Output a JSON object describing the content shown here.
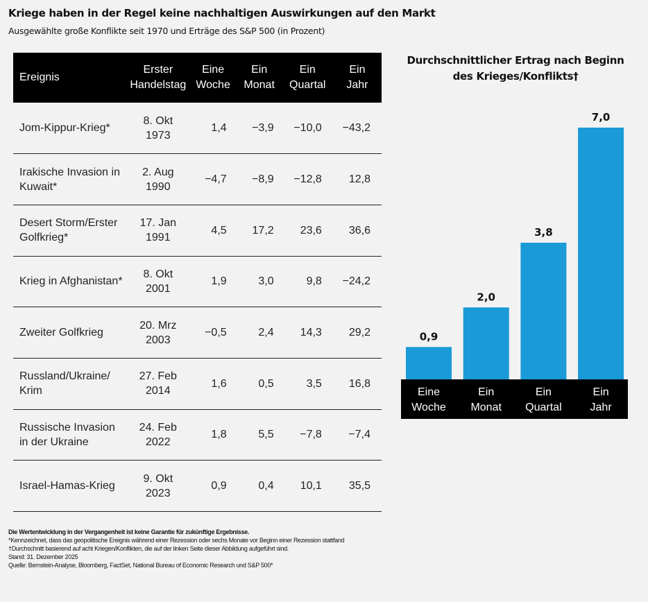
{
  "title": "Kriege haben in der Regel keine nachhaltigen Auswirkungen auf den Markt",
  "subtitle": "Ausgewählte große Konflikte seit 1970 und Erträge des S&P 500 (in Prozent)",
  "table": {
    "headers": [
      [
        "Ereignis"
      ],
      [
        "Erster",
        "Handelstag"
      ],
      [
        "Eine",
        "Woche"
      ],
      [
        "Ein",
        "Monat"
      ],
      [
        "Ein",
        "Quartal"
      ],
      [
        "Ein",
        "Jahr"
      ]
    ],
    "rows": [
      {
        "event": [
          "Jom-Kippur-Krieg*"
        ],
        "date": [
          "8. Okt",
          "1973"
        ],
        "week": "1,4",
        "month": "−3,9",
        "quarter": "−10,0",
        "year": "−43,2"
      },
      {
        "event": [
          "Irakische Invasion in",
          "Kuwait*"
        ],
        "date": [
          "2. Aug",
          "1990"
        ],
        "week": "−4,7",
        "month": "−8,9",
        "quarter": "−12,8",
        "year": "12,8"
      },
      {
        "event": [
          "Desert Storm/Erster",
          "Golfkrieg*"
        ],
        "date": [
          "17. Jan",
          "1991"
        ],
        "week": "4,5",
        "month": "17,2",
        "quarter": "23,6",
        "year": "36,6"
      },
      {
        "event": [
          "Krieg in Afghanistan*"
        ],
        "date": [
          "8. Okt",
          "2001"
        ],
        "week": "1,9",
        "month": "3,0",
        "quarter": "9,8",
        "year": "−24,2"
      },
      {
        "event": [
          "Zweiter Golfkrieg"
        ],
        "date": [
          "20. Mrz",
          "2003"
        ],
        "week": "−0,5",
        "month": "2,4",
        "quarter": "14,3",
        "year": "29,2"
      },
      {
        "event": [
          "Russland/Ukraine/",
          "Krim"
        ],
        "date": [
          "27. Feb",
          "2014"
        ],
        "week": "1,6",
        "month": "0,5",
        "quarter": "3,5",
        "year": "16,8"
      },
      {
        "event": [
          "Russische Invasion",
          "in der Ukraine"
        ],
        "date": [
          "24. Feb",
          "2022"
        ],
        "week": "1,8",
        "month": "5,5",
        "quarter": "−7,8",
        "year": "−7,4"
      },
      {
        "event": [
          "Israel-Hamas-Krieg"
        ],
        "date": [
          "9. Okt",
          "2023"
        ],
        "week": "0,9",
        "month": "0,4",
        "quarter": "10,1",
        "year": "35,5"
      }
    ]
  },
  "chart_data": {
    "type": "bar",
    "title": "Durchschnittlicher Ertrag nach Beginn des Krieges/Konflikts†",
    "categories": [
      [
        "Eine",
        "Woche"
      ],
      [
        "Ein",
        "Monat"
      ],
      [
        "Ein",
        "Quartal"
      ],
      [
        "Ein",
        "Jahr"
      ]
    ],
    "values": [
      0.9,
      2.0,
      3.8,
      7.0
    ],
    "labels": [
      "0,9",
      "2,0",
      "3,8",
      "7,0"
    ],
    "ylim": [
      0,
      7.0
    ],
    "grid": false,
    "bar_color": "#1a9ad7"
  },
  "footer": {
    "disclaimer": "Die Wertentwicklung in der Vergangenheit ist keine Garantie für zukünftige Ergebnisse.",
    "lines": [
      "*Kennzeichnet, dass das geopolitische Ereignis während einer Rezession oder sechs Monate vor Beginn einer Rezession stattfand",
      "†Durchschnitt basierend auf acht Kriegen/Konflikten, die auf der linken Seite dieser Abbildung aufgeführt sind.",
      "Stand: 31. Dezember 2025",
      "Quelle: Bernstein-Analyse, Bloomberg, FactSet, National Bureau of Economic Research und S&P 500*"
    ]
  }
}
